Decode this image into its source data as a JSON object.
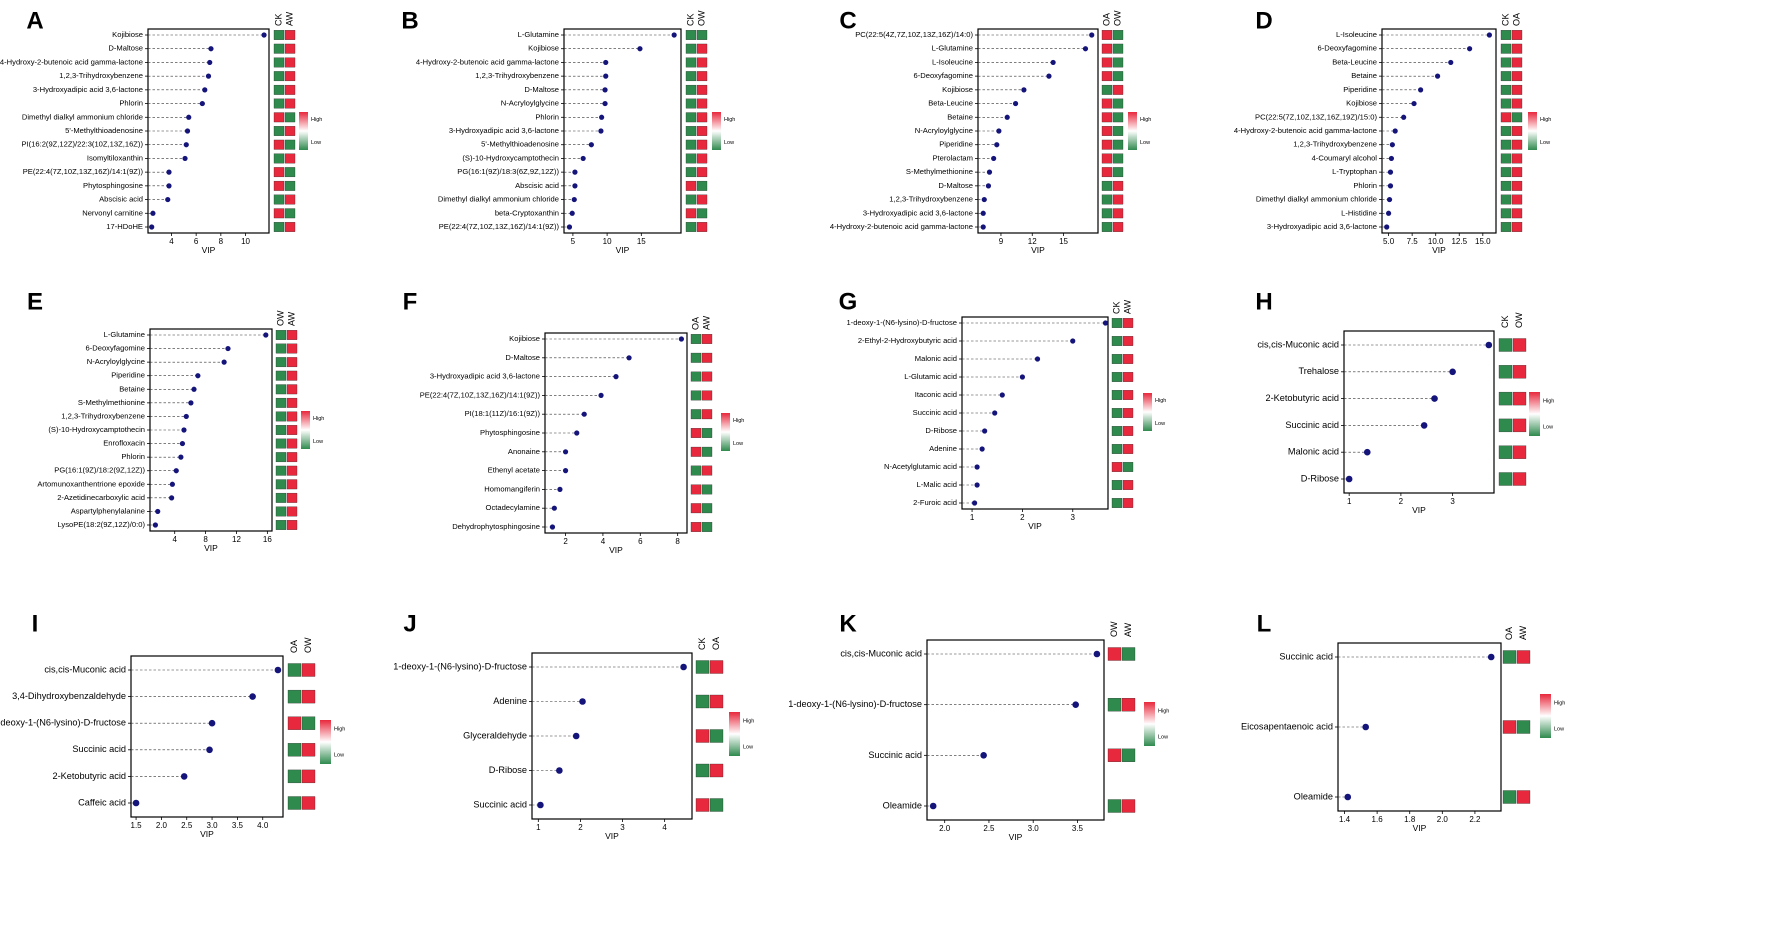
{
  "figure": {
    "x_axis_label": "VIP",
    "legend_high": "High",
    "legend_low": "Low",
    "colors": {
      "point": "#14147a",
      "high": "#e8283c",
      "low": "#2f8a4e",
      "frame": "#000000"
    }
  },
  "chart_data": [
    {
      "type": "scatter",
      "panel": "A",
      "xlabel": "VIP",
      "xlim": [
        2.1,
        11.9
      ],
      "xticks": [
        4,
        6,
        8,
        10
      ],
      "groups": [
        "CK",
        "AW"
      ],
      "categories": [
        "Kojibiose",
        "D-Maltose",
        "4-Hydroxy-2-butenoic acid gamma-lactone",
        "1,2,3-Trihydroxybenzene",
        "3-Hydroxyadipic acid 3,6-lactone",
        "Phlorin",
        "Dimethyl dialkyl ammonium chloride",
        "5'-Methylthioadenosine",
        "PI(16:2(9Z,12Z)/22:3(10Z,13Z,16Z))",
        "Isomyltiloxanthin",
        "PE(22:4(7Z,10Z,13Z,16Z)/14:1(9Z))",
        "Phytosphingosine",
        "Abscisic acid",
        "Nervonyl carnitine",
        "17-HDoHE"
      ],
      "values": [
        11.5,
        7.2,
        7.1,
        7.0,
        6.7,
        6.5,
        5.4,
        5.3,
        5.2,
        5.1,
        3.8,
        3.8,
        3.7,
        2.5,
        2.4
      ],
      "heat": [
        [
          "L",
          "H"
        ],
        [
          "L",
          "H"
        ],
        [
          "L",
          "H"
        ],
        [
          "L",
          "H"
        ],
        [
          "L",
          "H"
        ],
        [
          "L",
          "H"
        ],
        [
          "H",
          "L"
        ],
        [
          "L",
          "H"
        ],
        [
          "H",
          "L"
        ],
        [
          "L",
          "H"
        ],
        [
          "H",
          "L"
        ],
        [
          "H",
          "L"
        ],
        [
          "L",
          "H"
        ],
        [
          "H",
          "L"
        ],
        [
          "L",
          "H"
        ]
      ]
    },
    {
      "type": "scatter",
      "panel": "B",
      "xlabel": "VIP",
      "xlim": [
        3.7,
        20.8
      ],
      "xticks": [
        5,
        10,
        15
      ],
      "groups": [
        "CK",
        "OW"
      ],
      "categories": [
        "L-Glutamine",
        "Kojibiose",
        "4-Hydroxy-2-butenoic acid gamma-lactone",
        "1,2,3-Trihydroxybenzene",
        "D-Maltose",
        "N-Acryloylglycine",
        "Phlorin",
        "3-Hydroxyadipic acid 3,6-lactone",
        "5'-Methylthioadenosine",
        "(S)-10-Hydroxycamptothecin",
        "PG(16:1(9Z)/18:3(6Z,9Z,12Z))",
        "Abscisic acid",
        "Dimethyl dialkyl ammonium chloride",
        "beta-Cryptoxanthin",
        "PE(22:4(7Z,10Z,13Z,16Z)/14:1(9Z))"
      ],
      "values": [
        19.8,
        14.8,
        9.8,
        9.8,
        9.7,
        9.7,
        9.2,
        9.1,
        7.7,
        6.5,
        5.3,
        5.3,
        5.2,
        4.9,
        4.5
      ],
      "heat": [
        [
          "L",
          "L"
        ],
        [
          "L",
          "H"
        ],
        [
          "L",
          "H"
        ],
        [
          "L",
          "H"
        ],
        [
          "L",
          "H"
        ],
        [
          "L",
          "H"
        ],
        [
          "L",
          "H"
        ],
        [
          "L",
          "H"
        ],
        [
          "L",
          "H"
        ],
        [
          "L",
          "H"
        ],
        [
          "L",
          "H"
        ],
        [
          "H",
          "L"
        ],
        [
          "L",
          "H"
        ],
        [
          "H",
          "L"
        ],
        [
          "L",
          "H"
        ]
      ]
    },
    {
      "type": "scatter",
      "panel": "C",
      "xlabel": "VIP",
      "xlim": [
        6.8,
        18.3
      ],
      "xticks": [
        9,
        12,
        15
      ],
      "groups": [
        "OA",
        "OW"
      ],
      "categories": [
        "PC(22:5(4Z,7Z,10Z,13Z,16Z)/14:0)",
        "L-Glutamine",
        "L-Isoleucine",
        "6-Deoxyfagomine",
        "Kojibiose",
        "Beta-Leucine",
        "Betaine",
        "N-Acryloylglycine",
        "Piperidine",
        "Pterolactam",
        "S-Methylmethionine",
        "D-Maltose",
        "1,2,3-Trihydroxybenzene",
        "3-Hydroxyadipic acid 3,6-lactone",
        "4-Hydroxy-2-butenoic acid gamma-lactone"
      ],
      "values": [
        17.7,
        17.1,
        14.0,
        13.6,
        11.2,
        10.4,
        9.6,
        8.8,
        8.6,
        8.3,
        7.9,
        7.8,
        7.4,
        7.3,
        7.3
      ],
      "heat": [
        [
          "H",
          "L"
        ],
        [
          "H",
          "L"
        ],
        [
          "H",
          "L"
        ],
        [
          "H",
          "L"
        ],
        [
          "L",
          "H"
        ],
        [
          "H",
          "L"
        ],
        [
          "H",
          "L"
        ],
        [
          "H",
          "L"
        ],
        [
          "H",
          "L"
        ],
        [
          "H",
          "L"
        ],
        [
          "H",
          "L"
        ],
        [
          "L",
          "H"
        ],
        [
          "L",
          "H"
        ],
        [
          "L",
          "H"
        ],
        [
          "L",
          "H"
        ]
      ]
    },
    {
      "type": "scatter",
      "panel": "D",
      "xlabel": "VIP",
      "xlim": [
        4.3,
        16.4
      ],
      "xticks": [
        5.0,
        7.5,
        10.0,
        12.5,
        15.0
      ],
      "groups": [
        "CK",
        "OA"
      ],
      "categories": [
        "L-Isoleucine",
        "6-Deoxyfagomine",
        "Beta-Leucine",
        "Betaine",
        "Piperidine",
        "Kojibiose",
        "PC(22:5(7Z,10Z,13Z,16Z,19Z)/15:0)",
        "4-Hydroxy-2-butenoic acid gamma-lactone",
        "1,2,3-Trihydroxybenzene",
        "4-Coumaryl alcohol",
        "L-Tryptophan",
        "Phlorin",
        "Dimethyl dialkyl ammonium chloride",
        "L-Histidine",
        "3-Hydroxyadipic acid 3,6-lactone"
      ],
      "values": [
        15.7,
        13.6,
        11.6,
        10.2,
        8.4,
        7.7,
        6.6,
        5.7,
        5.4,
        5.3,
        5.2,
        5.2,
        5.1,
        5.0,
        4.8
      ],
      "heat": [
        [
          "L",
          "H"
        ],
        [
          "L",
          "H"
        ],
        [
          "L",
          "H"
        ],
        [
          "L",
          "H"
        ],
        [
          "L",
          "H"
        ],
        [
          "L",
          "H"
        ],
        [
          "H",
          "L"
        ],
        [
          "L",
          "H"
        ],
        [
          "L",
          "H"
        ],
        [
          "L",
          "H"
        ],
        [
          "L",
          "H"
        ],
        [
          "L",
          "H"
        ],
        [
          "L",
          "H"
        ],
        [
          "L",
          "H"
        ],
        [
          "L",
          "H"
        ]
      ]
    },
    {
      "type": "scatter",
      "panel": "E",
      "xlabel": "VIP",
      "xlim": [
        0.8,
        16.6
      ],
      "xticks": [
        4,
        8,
        12,
        16
      ],
      "groups": [
        "OW",
        "AW"
      ],
      "categories": [
        "L-Glutamine",
        "6-Deoxyfagomine",
        "N-Acryloylglycine",
        "Piperidine",
        "Betaine",
        "S-Methylmethionine",
        "1,2,3-Trihydroxybenzene",
        "(S)-10-Hydroxycamptothecin",
        "Enrofloxacin",
        "Phlorin",
        "PG(16:1(9Z)/18:2(9Z,12Z))",
        "Artomunoxanthentrione epoxide",
        "2-Azetidinecarboxylic acid",
        "Aspartylphenylalanine",
        "LysoPE(18:2(9Z,12Z)/0:0)"
      ],
      "values": [
        15.8,
        10.9,
        10.4,
        7.0,
        6.5,
        6.1,
        5.5,
        5.2,
        5.0,
        4.8,
        4.2,
        3.7,
        3.6,
        1.8,
        1.5
      ],
      "heat": [
        [
          "L",
          "H"
        ],
        [
          "L",
          "H"
        ],
        [
          "L",
          "H"
        ],
        [
          "L",
          "H"
        ],
        [
          "L",
          "H"
        ],
        [
          "L",
          "H"
        ],
        [
          "L",
          "H"
        ],
        [
          "L",
          "H"
        ],
        [
          "L",
          "H"
        ],
        [
          "L",
          "H"
        ],
        [
          "L",
          "H"
        ],
        [
          "L",
          "H"
        ],
        [
          "L",
          "H"
        ],
        [
          "L",
          "H"
        ],
        [
          "L",
          "H"
        ]
      ]
    },
    {
      "type": "scatter",
      "panel": "F",
      "xlabel": "VIP",
      "xlim": [
        0.9,
        8.5
      ],
      "xticks": [
        2,
        4,
        6,
        8
      ],
      "groups": [
        "OA",
        "AW"
      ],
      "categories": [
        "Kojibiose",
        "D-Maltose",
        "3-Hydroxyadipic acid 3,6-lactone",
        "PE(22:4(7Z,10Z,13Z,16Z)/14:1(9Z))",
        "PI(18:1(11Z)/16:1(9Z))",
        "Phytosphingosine",
        "Anonaine",
        "Ethenyl acetate",
        "Homomangiferin",
        "Octadecylamine",
        "Dehydrophytosphingosine"
      ],
      "values": [
        8.2,
        5.4,
        4.7,
        3.9,
        3.0,
        2.6,
        2.0,
        2.0,
        1.7,
        1.4,
        1.3
      ],
      "heat": [
        [
          "L",
          "H"
        ],
        [
          "L",
          "H"
        ],
        [
          "L",
          "H"
        ],
        [
          "L",
          "H"
        ],
        [
          "L",
          "H"
        ],
        [
          "H",
          "L"
        ],
        [
          "H",
          "L"
        ],
        [
          "L",
          "H"
        ],
        [
          "H",
          "L"
        ],
        [
          "H",
          "L"
        ],
        [
          "H",
          "L"
        ]
      ]
    },
    {
      "type": "scatter",
      "panel": "G",
      "xlabel": "VIP",
      "xlim": [
        0.8,
        3.7
      ],
      "xticks": [
        1,
        2,
        3
      ],
      "groups": [
        "CK",
        "AW"
      ],
      "categories": [
        "1-deoxy-1-(N6-lysino)-D-fructose",
        "2-Ethyl-2-Hydroxybutyric acid",
        "Malonic acid",
        "L-Glutamic acid",
        "Itaconic acid",
        "Succinic acid",
        "D-Ribose",
        "Adenine",
        "N-Acetylglutamic acid",
        "L-Malic acid",
        "2-Furoic acid"
      ],
      "values": [
        3.65,
        3.0,
        2.3,
        2.0,
        1.6,
        1.45,
        1.25,
        1.2,
        1.1,
        1.1,
        1.05
      ],
      "heat": [
        [
          "L",
          "H"
        ],
        [
          "L",
          "H"
        ],
        [
          "L",
          "H"
        ],
        [
          "L",
          "H"
        ],
        [
          "L",
          "H"
        ],
        [
          "L",
          "H"
        ],
        [
          "L",
          "H"
        ],
        [
          "L",
          "H"
        ],
        [
          "H",
          "L"
        ],
        [
          "L",
          "H"
        ],
        [
          "L",
          "H"
        ]
      ]
    },
    {
      "type": "scatter",
      "panel": "H",
      "xlabel": "VIP",
      "xlim": [
        0.9,
        3.8
      ],
      "xticks": [
        1,
        2,
        3
      ],
      "groups": [
        "CK",
        "OW"
      ],
      "categories": [
        "cis,cis-Muconic acid",
        "Trehalose",
        "2-Ketobutyric acid",
        "Succinic acid",
        "Malonic acid",
        "D-Ribose"
      ],
      "values": [
        3.7,
        3.0,
        2.65,
        2.45,
        1.35,
        1.0
      ],
      "heat": [
        [
          "L",
          "H"
        ],
        [
          "L",
          "H"
        ],
        [
          "L",
          "H"
        ],
        [
          "L",
          "H"
        ],
        [
          "L",
          "H"
        ],
        [
          "L",
          "H"
        ]
      ]
    },
    {
      "type": "scatter",
      "panel": "I",
      "xlabel": "VIP",
      "xlim": [
        1.4,
        4.4
      ],
      "xticks": [
        1.5,
        2.0,
        2.5,
        3.0,
        3.5,
        4.0
      ],
      "groups": [
        "OA",
        "OW"
      ],
      "categories": [
        "cis,cis-Muconic acid",
        "3,4-Dihydroxybenzaldehyde",
        "1-deoxy-1-(N6-lysino)-D-fructose",
        "Succinic acid",
        "2-Ketobutyric acid",
        "Caffeic acid"
      ],
      "values": [
        4.3,
        3.8,
        3.0,
        2.95,
        2.45,
        1.5
      ],
      "heat": [
        [
          "L",
          "H"
        ],
        [
          "L",
          "H"
        ],
        [
          "H",
          "L"
        ],
        [
          "L",
          "H"
        ],
        [
          "L",
          "H"
        ],
        [
          "L",
          "H"
        ]
      ]
    },
    {
      "type": "scatter",
      "panel": "J",
      "xlabel": "VIP",
      "xlim": [
        0.85,
        4.65
      ],
      "xticks": [
        1,
        2,
        3,
        4
      ],
      "groups": [
        "CK",
        "OA"
      ],
      "categories": [
        "1-deoxy-1-(N6-lysino)-D-fructose",
        "Adenine",
        "Glyceraldehyde",
        "D-Ribose",
        "Succinic acid"
      ],
      "values": [
        4.45,
        2.05,
        1.9,
        1.5,
        1.05
      ],
      "heat": [
        [
          "L",
          "H"
        ],
        [
          "L",
          "H"
        ],
        [
          "H",
          "L"
        ],
        [
          "L",
          "H"
        ],
        [
          "H",
          "L"
        ]
      ]
    },
    {
      "type": "scatter",
      "panel": "K",
      "xlabel": "VIP",
      "xlim": [
        1.8,
        3.8
      ],
      "xticks": [
        2.0,
        2.5,
        3.0,
        3.5
      ],
      "groups": [
        "OW",
        "AW"
      ],
      "categories": [
        "cis,cis-Muconic acid",
        "1-deoxy-1-(N6-lysino)-D-fructose",
        "Succinic acid",
        "Oleamide"
      ],
      "values": [
        3.72,
        3.48,
        2.44,
        1.87
      ],
      "heat": [
        [
          "H",
          "L"
        ],
        [
          "L",
          "H"
        ],
        [
          "H",
          "L"
        ],
        [
          "L",
          "H"
        ]
      ]
    },
    {
      "type": "scatter",
      "panel": "L",
      "xlabel": "VIP",
      "xlim": [
        1.36,
        2.36
      ],
      "xticks": [
        1.4,
        1.6,
        1.8,
        2.0,
        2.2
      ],
      "groups": [
        "OA",
        "AW"
      ],
      "categories": [
        "Succinic acid",
        "Eicosapentaenoic acid",
        "Oleamide"
      ],
      "values": [
        2.3,
        1.53,
        1.42
      ],
      "heat": [
        [
          "L",
          "H"
        ],
        [
          "H",
          "L"
        ],
        [
          "L",
          "H"
        ]
      ]
    }
  ]
}
